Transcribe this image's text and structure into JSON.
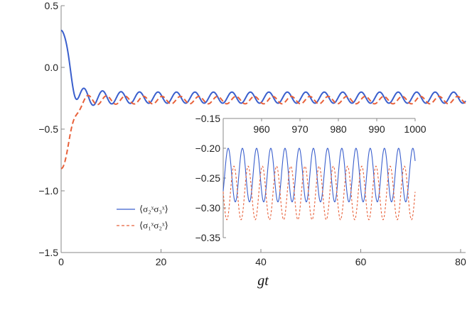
{
  "chart_data": {
    "type": "line",
    "xlabel": "gt",
    "ylabel": "",
    "xlim": [
      0,
      81
    ],
    "ylim": [
      -1.5,
      0.5
    ],
    "xticks": [
      0,
      20,
      40,
      60,
      80
    ],
    "yticks": [
      -1.5,
      -1.0,
      -0.5,
      0.0,
      0.5
    ],
    "xtick_labels": [
      "0",
      "20",
      "40",
      "60",
      "80"
    ],
    "ytick_labels": [
      "−1.5",
      "−1.0",
      "−0.5",
      "0.0",
      "0.5"
    ],
    "series": [
      {
        "name": "⟨σ₂ˣσ₃ˣ⟩",
        "color": "#3a5fcd",
        "dash": "solid",
        "start_value": 0.3,
        "mean_value": -0.245,
        "oscillation_amplitude": 0.045,
        "oscillation_period": 3.7
      },
      {
        "name": "⟨σ₁ˣσ₂ˣ⟩",
        "color": "#e8613a",
        "dash": "dashed",
        "start_value": -0.82,
        "mean_value": -0.265,
        "oscillation_amplitude": 0.03,
        "oscillation_period": 3.7
      }
    ],
    "legend_position": "lower-left",
    "inset": {
      "xlim": [
        950,
        1000
      ],
      "ylim": [
        -0.35,
        -0.15
      ],
      "xticks": [
        960,
        970,
        980,
        990,
        1000
      ],
      "yticks": [
        -0.35,
        -0.3,
        -0.25,
        -0.2,
        -0.15
      ],
      "xtick_labels": [
        "960",
        "970",
        "980",
        "990",
        "1000"
      ],
      "ytick_labels": [
        "−0.35",
        "−0.30",
        "−0.25",
        "−0.20",
        "−0.15"
      ],
      "x_axis_position": "top",
      "series": [
        {
          "color": "#3a5fcd",
          "dash": "solid",
          "max": -0.2,
          "min": -0.29,
          "period": 3.7,
          "x_start": 950,
          "x_end": 1000
        },
        {
          "color": "#e8613a",
          "dash": "dashed",
          "max": -0.23,
          "min": -0.32,
          "period": 3.7,
          "x_start": 950,
          "x_end": 1000
        }
      ]
    }
  }
}
